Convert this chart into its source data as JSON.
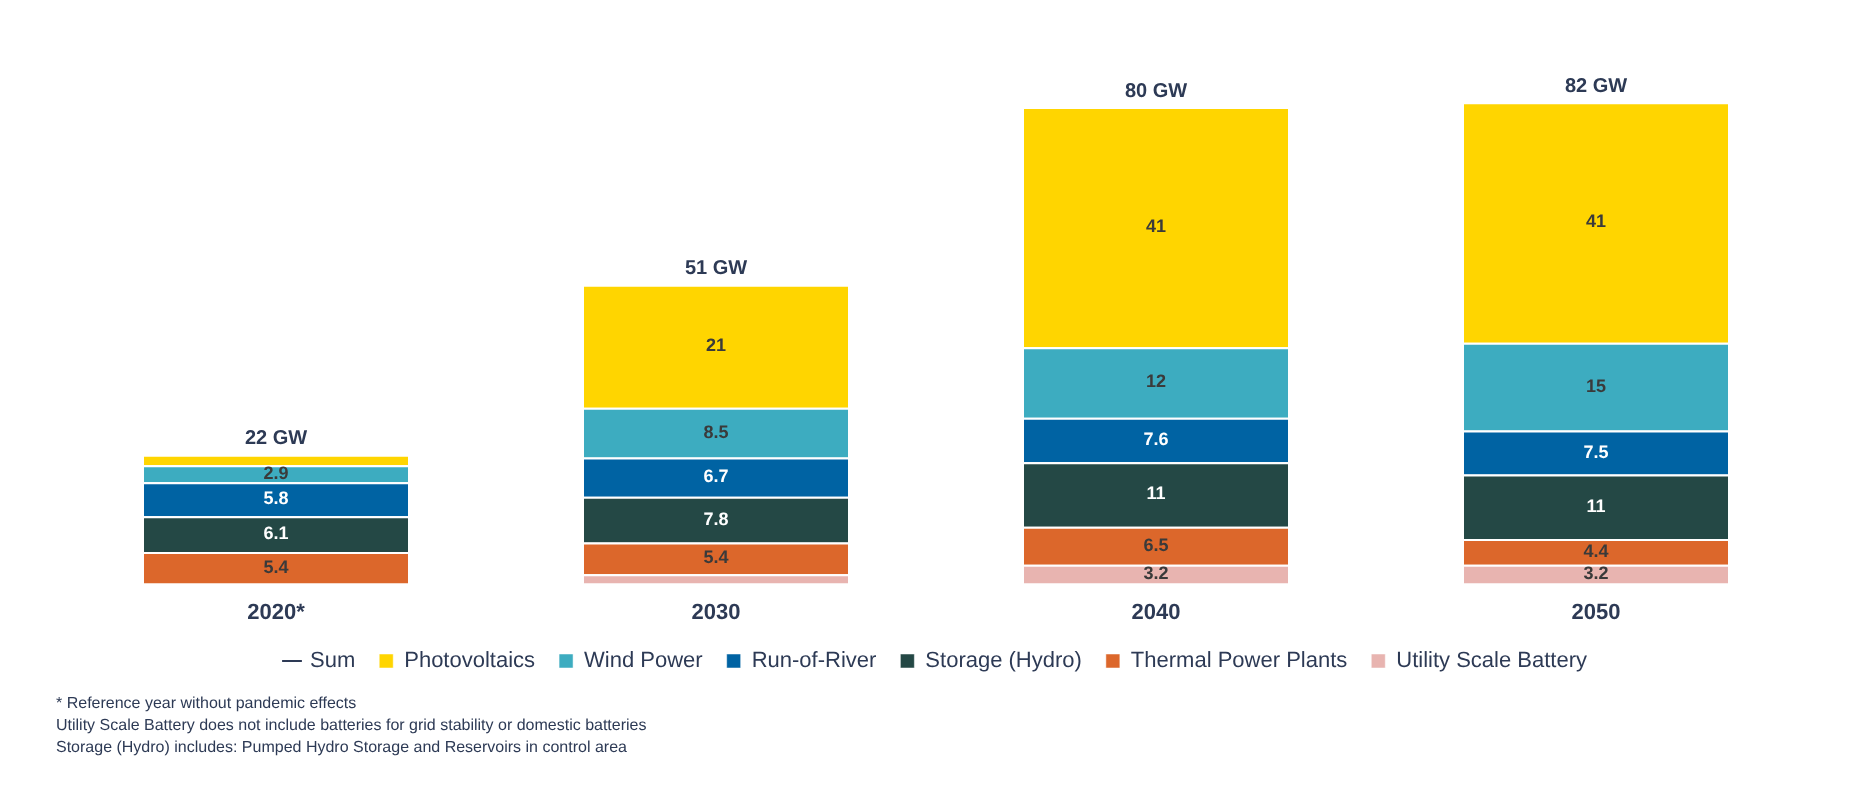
{
  "chart_data": {
    "type": "bar",
    "stacked": true,
    "categories": [
      "2020*",
      "2030",
      "2040",
      "2050"
    ],
    "series": [
      {
        "name": "Utility Scale Battery",
        "color": "#e8b4b0",
        "values": [
          null,
          1.6,
          3.2,
          3.2
        ],
        "value_labels": [
          null,
          null,
          "3.2",
          "3.2"
        ]
      },
      {
        "name": "Thermal Power Plants",
        "color": "#dc672b",
        "values": [
          5.4,
          5.4,
          6.5,
          4.4
        ],
        "value_labels": [
          "5.4",
          "5.4",
          "6.5",
          "4.4"
        ]
      },
      {
        "name": "Storage (Hydro)",
        "color": "#244845",
        "values": [
          6.1,
          7.8,
          11,
          11
        ],
        "value_labels": [
          "6.1",
          "7.8",
          "11",
          "11"
        ]
      },
      {
        "name": "Run-of-River",
        "color": "#0063a3",
        "values": [
          5.8,
          6.7,
          7.6,
          7.5
        ],
        "value_labels": [
          "5.8",
          "6.7",
          "7.6",
          "7.5"
        ]
      },
      {
        "name": "Wind Power",
        "color": "#3dacc0",
        "values": [
          2.9,
          8.5,
          12,
          15
        ],
        "value_labels": [
          "2.9",
          "8.5",
          "12",
          "15"
        ]
      },
      {
        "name": "Photovoltaics",
        "color": "#ffd500",
        "values": [
          1.8,
          21,
          41,
          41
        ],
        "value_labels": [
          null,
          "21",
          "41",
          "41"
        ]
      },
      {
        "name": "Sum",
        "type": "line",
        "color": "#2d3a55",
        "values": [
          null,
          null,
          null,
          null
        ]
      }
    ],
    "totals": [
      "22 GW",
      "51 GW",
      "80 GW",
      "82 GW"
    ],
    "tick_labels": "x",
    "grid": false,
    "legend": "bottom",
    "annotations": [
      "* Reference year without pandemic effects",
      "Utility Scale Battery does not include batteries for grid stability or domestic batteries",
      "Storage (Hydro) includes: Pumped Hydro Storage and Reservoirs in control area"
    ]
  }
}
